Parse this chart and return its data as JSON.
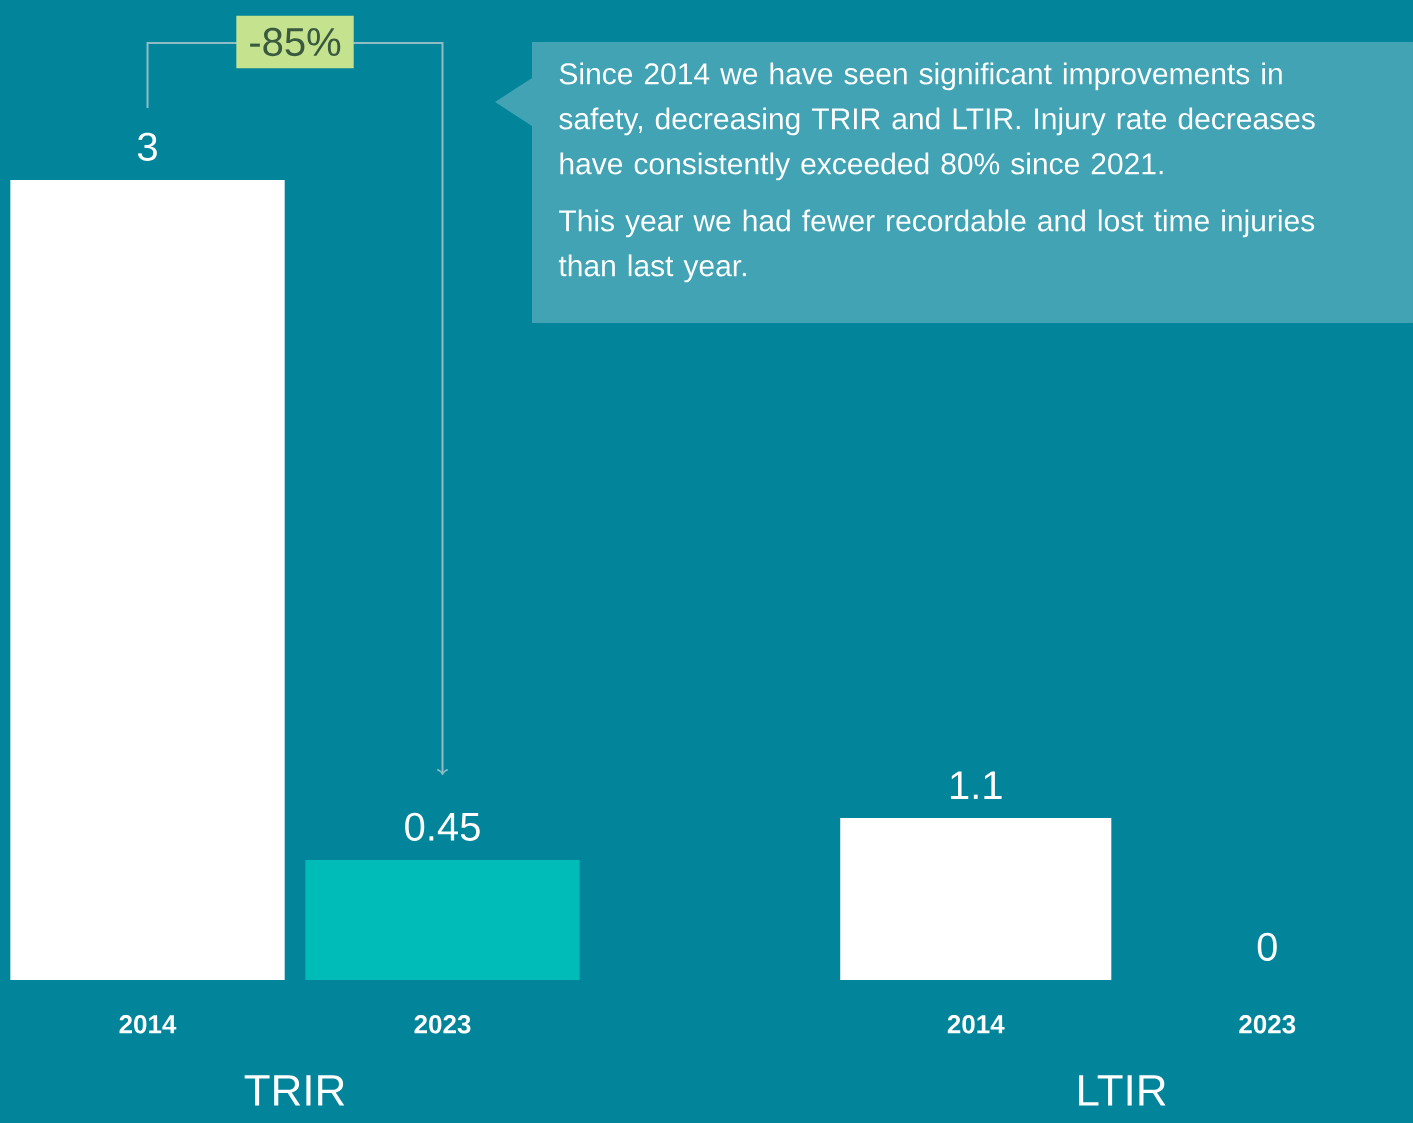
{
  "chart_data": [
    {
      "type": "bar",
      "xlabel": "TRIR",
      "categories": [
        "2014",
        "2023"
      ],
      "values": [
        3,
        0.45
      ],
      "colors": [
        "#ffffff",
        "#00bcb8"
      ],
      "data_labels": true,
      "annotations": [
        "-85%"
      ]
    },
    {
      "type": "bar",
      "xlabel": "LTIR",
      "categories": [
        "2014",
        "2023"
      ],
      "values": [
        1.1,
        0
      ],
      "colors": [
        "#ffffff",
        "#00bcb8"
      ],
      "data_labels": true
    },
    {
      "type": "other",
      "annotations": [
        "Since 2014 we have seen significant improvements in safety, decreasing TRIR and LTIR. Injury rate decreases have consistently exceeded 80% since 2021.",
        "This year we had fewer recordable and lost time injuries than last year."
      ]
    }
  ]
}
